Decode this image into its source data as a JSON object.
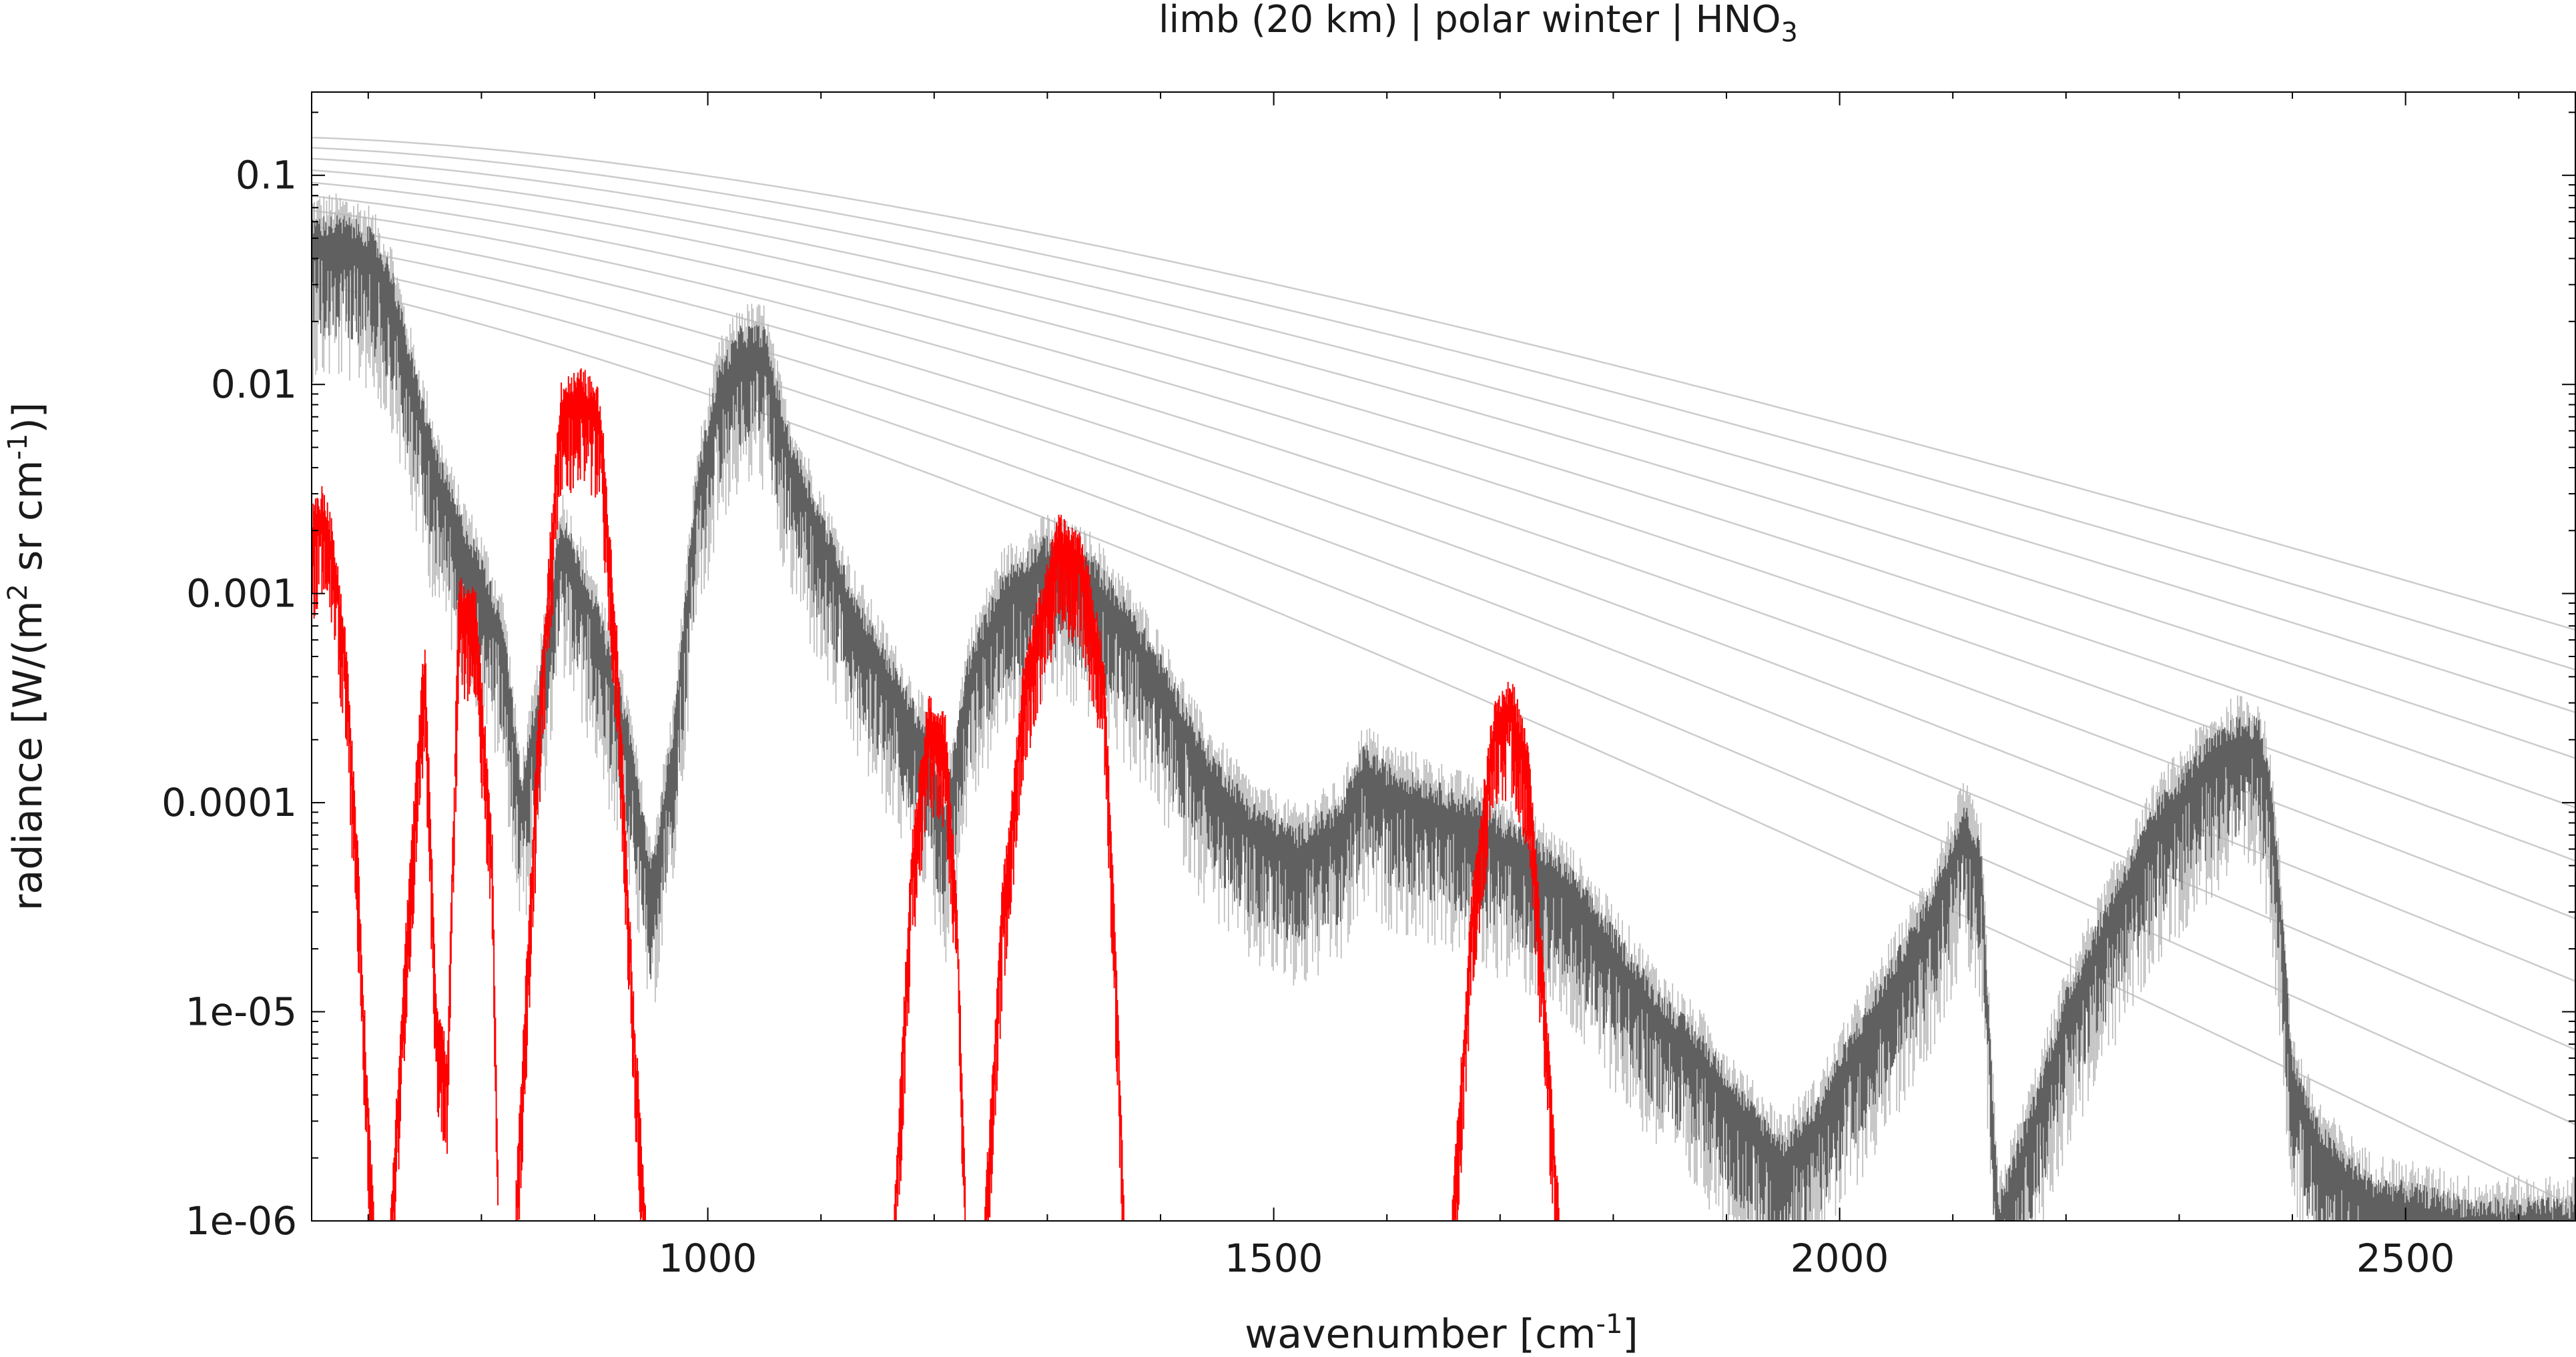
{
  "chart_data": {
    "type": "line",
    "title": {
      "prefix": "limb (20 km) | polar winter | HNO",
      "subscript": "3"
    },
    "xlabel": {
      "prefix": "wavenumber [cm",
      "superscript": "-1",
      "suffix": "]"
    },
    "ylabel": {
      "part1": "radiance [W/(m",
      "sup1": "2",
      "part2": " sr cm",
      "sup2": "-1",
      "part3": ")]"
    },
    "x_scale": "linear",
    "y_scale": "log",
    "xlim": [
      650,
      2650
    ],
    "ylim": [
      1e-06,
      0.25
    ],
    "x_ticks": [
      {
        "value": 1000,
        "label": "1000"
      },
      {
        "value": 1500,
        "label": "1500"
      },
      {
        "value": 2000,
        "label": "2000"
      },
      {
        "value": 2500,
        "label": "2500"
      }
    ],
    "y_ticks": [
      {
        "value": 0.1,
        "label": "0.1"
      },
      {
        "value": 0.01,
        "label": "0.01"
      },
      {
        "value": 0.001,
        "label": "0.001"
      },
      {
        "value": 0.0001,
        "label": "0.0001"
      },
      {
        "value": 1e-05,
        "label": "1e-05"
      },
      {
        "value": 1e-06,
        "label": "1e-06"
      }
    ],
    "grid": false,
    "legend": "none",
    "colors": {
      "total_spectrum": "#606060",
      "light_spectrum": "#b8b8b8",
      "hno3_contribution": "#ff0000",
      "planck_curves": "#cccccc"
    },
    "series": [
      {
        "role": "total_spectrum",
        "x": [
          650,
          680,
          700,
          720,
          740,
          760,
          780,
          800,
          820,
          835,
          850,
          870,
          900,
          930,
          950,
          970,
          990,
          1010,
          1030,
          1050,
          1070,
          1100,
          1130,
          1160,
          1190,
          1210,
          1230,
          1260,
          1300,
          1340,
          1380,
          1400,
          1440,
          1480,
          1520,
          1560,
          1580,
          1600,
          1640,
          1680,
          1720,
          1760,
          1800,
          1840,
          1880,
          1920,
          1950,
          1980,
          2000,
          2040,
          2080,
          2110,
          2125,
          2140,
          2170,
          2200,
          2240,
          2280,
          2320,
          2350,
          2370,
          2380,
          2390,
          2400,
          2420,
          2440,
          2470,
          2500,
          2530,
          2560,
          2600,
          2650
        ],
        "y": [
          0.05,
          0.05,
          0.045,
          0.03,
          0.01,
          0.004,
          0.002,
          0.0012,
          0.0006,
          0.0001,
          0.0003,
          0.002,
          0.0008,
          0.0002,
          4e-05,
          0.0002,
          0.003,
          0.01,
          0.015,
          0.015,
          0.005,
          0.002,
          0.0008,
          0.0004,
          0.0002,
          8e-05,
          0.0004,
          0.001,
          0.0015,
          0.0012,
          0.0006,
          0.0004,
          0.00015,
          8e-05,
          6e-05,
          8e-05,
          0.00015,
          0.00012,
          0.0001,
          8e-05,
          6e-05,
          4e-05,
          2e-05,
          1e-05,
          6e-06,
          3e-06,
          2e-06,
          3e-06,
          5e-06,
          1.2e-05,
          3e-05,
          8e-05,
          5e-05,
          1e-06,
          3e-06,
          1e-05,
          3e-05,
          8e-05,
          0.00015,
          0.0002,
          0.0002,
          0.00012,
          3e-05,
          5e-06,
          2.5e-06,
          1.8e-06,
          1.3e-06,
          1.2e-06,
          1.1e-06,
          1e-06,
          1e-06,
          1e-06
        ]
      },
      {
        "role": "hno3_contribution",
        "segments": [
          {
            "x": [
              650,
              660,
              670,
              680,
              690,
              700,
              705
            ],
            "y": [
              0.002,
              0.0025,
              0.0015,
              0.0005,
              6e-05,
              3e-06,
              1e-06
            ]
          },
          {
            "x": [
              720,
              735,
              750,
              760,
              770,
              780,
              795,
              810,
              815
            ],
            "y": [
              1e-06,
              3e-05,
              0.0005,
              1e-05,
              5e-06,
              0.0009,
              0.0008,
              5e-05,
              1e-06
            ]
          },
          {
            "x": [
              830,
              850,
              870,
              890,
              905,
              920,
              935,
              945
            ],
            "y": [
              1e-06,
              0.0002,
              0.008,
              0.009,
              0.007,
              0.0005,
              8e-06,
              1e-06
            ]
          },
          {
            "x": [
              1165,
              1180,
              1195,
              1210,
              1220,
              1228
            ],
            "y": [
              1e-06,
              5e-05,
              0.00025,
              0.0002,
              3e-05,
              1e-06
            ]
          },
          {
            "x": [
              1245,
              1260,
              1280,
              1310,
              1330,
              1350,
              1360,
              1368
            ],
            "y": [
              1e-06,
              3e-05,
              0.0004,
              0.0018,
              0.0015,
              0.0004,
              2e-05,
              1e-06
            ]
          },
          {
            "x": [
              1658,
              1675,
              1695,
              1710,
              1725,
              1740,
              1752
            ],
            "y": [
              1e-06,
              3e-05,
              0.00025,
              0.0003,
              0.00015,
              1e-05,
              1e-06
            ]
          }
        ]
      },
      {
        "role": "planck_curves",
        "temperatures_K": [
          300,
          290,
          280,
          270,
          260,
          250,
          240,
          230,
          220,
          210,
          200
        ]
      }
    ]
  }
}
